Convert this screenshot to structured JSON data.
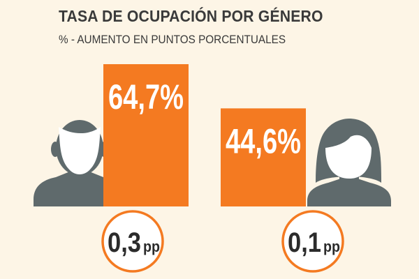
{
  "colors": {
    "background": "#fdf5e6",
    "bar": "#f47a21",
    "figure": "#5f6a6c",
    "text": "#3a3a3a",
    "label": "#ffffff",
    "badge_border": "#f47a21",
    "badge_fill": "#ffffff",
    "badge_text": "#2b2b2b"
  },
  "header": {
    "title": "TASA DE OCUPACIÓN POR GÉNERO",
    "subtitle": "% -  AUMENTO EN PUNTOS PORCENTUALES"
  },
  "icons": [
    "male-person-icon",
    "female-person-icon"
  ],
  "chart_data": {
    "type": "bar",
    "categories": [
      "",
      ""
    ],
    "values": [
      64.7,
      44.6
    ],
    "value_labels": [
      "64,7%",
      "44,6%"
    ],
    "increase_labels": [
      "0,3",
      "0,1"
    ],
    "increase_unit": "pp",
    "increase_values": [
      0.3,
      0.1
    ],
    "title": "TASA DE OCUPACIÓN POR GÉNERO",
    "subtitle": "% -  AUMENTO EN PUNTOS PORCENTUALES",
    "xlabel": "",
    "ylabel": "",
    "ylim": [
      0,
      64.7
    ],
    "grid": false
  }
}
